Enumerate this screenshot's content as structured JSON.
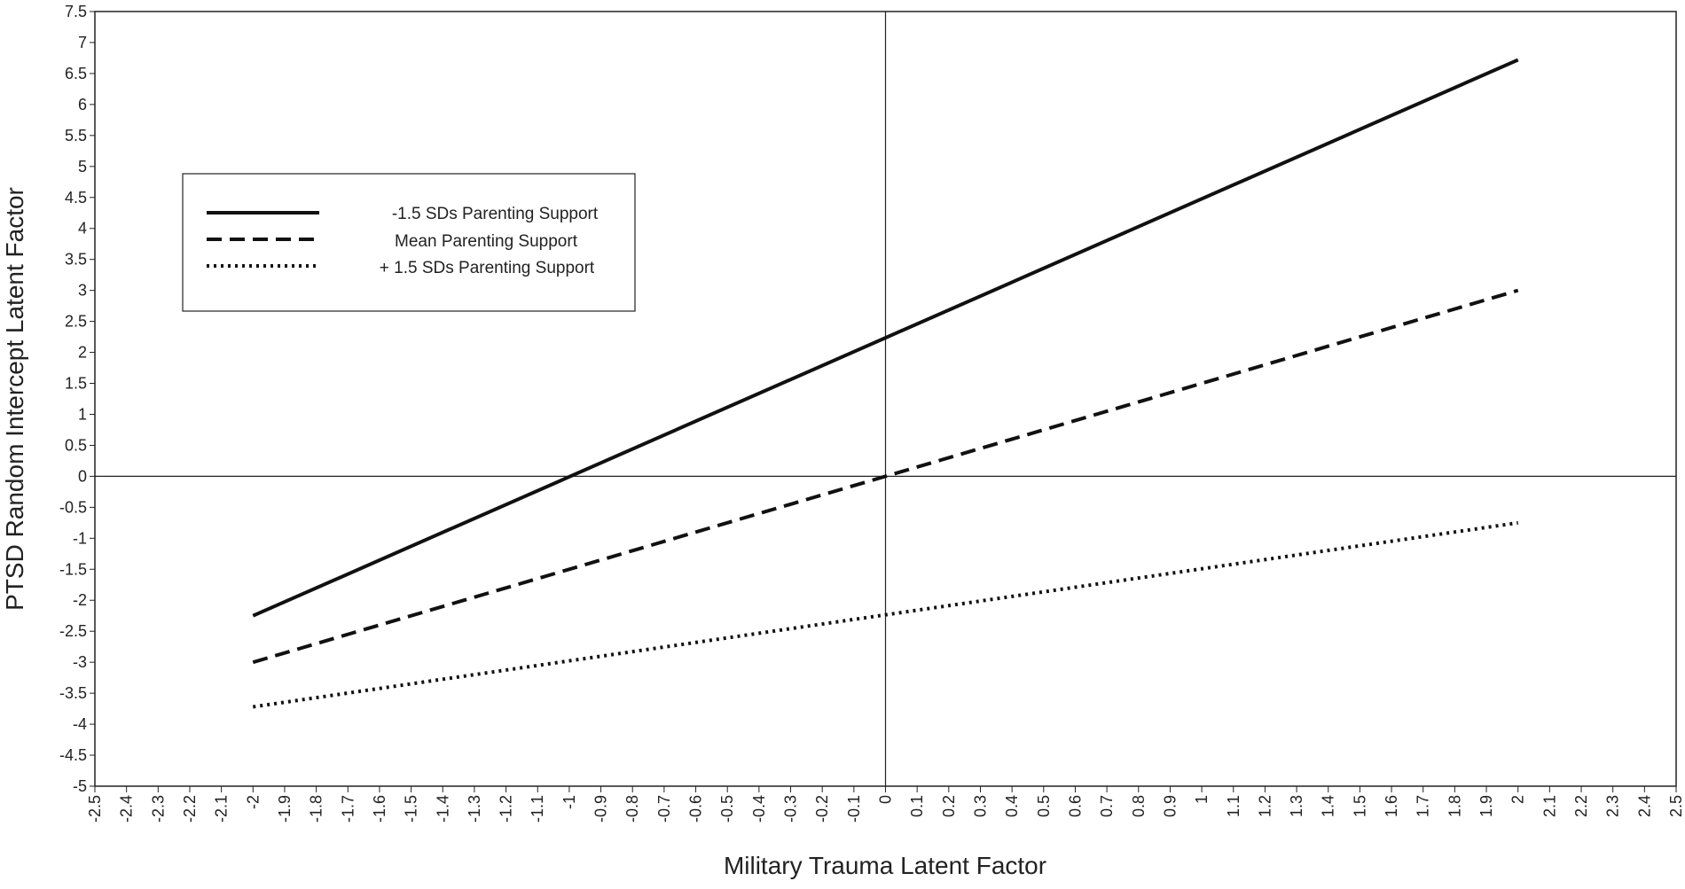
{
  "chart_data": {
    "type": "line",
    "title": "",
    "xlabel": "Military Trauma Latent Factor",
    "ylabel": "PTSD Random Intercept Latent Factor",
    "xlim": [
      -2.5,
      2.5
    ],
    "ylim": [
      -5,
      7.5
    ],
    "x_ticks": [
      "-2.5",
      "-2.4",
      "-2.3",
      "-2.2",
      "-2.1",
      "-2",
      "-1.9",
      "-1.8",
      "-1.7",
      "-1.6",
      "-1.5",
      "-1.4",
      "-1.3",
      "-1.2",
      "-1.1",
      "-1",
      "-0.9",
      "-0.8",
      "-0.7",
      "-0.6",
      "-0.5",
      "-0.4",
      "-0.3",
      "-0.2",
      "-0.1",
      "0",
      "0.1",
      "0.2",
      "0.3",
      "0.4",
      "0.5",
      "0.6",
      "0.7",
      "0.8",
      "0.9",
      "1",
      "1.1",
      "1.2",
      "1.3",
      "1.4",
      "1.5",
      "1.6",
      "1.7",
      "1.8",
      "1.9",
      "2",
      "2.1",
      "2.2",
      "2.3",
      "2.4",
      "2.5"
    ],
    "y_ticks": [
      "-5",
      "-4.5",
      "-4",
      "-3.5",
      "-3",
      "-2.5",
      "-2",
      "-1.5",
      "-1",
      "-0.5",
      "0",
      "0.5",
      "1",
      "1.5",
      "2",
      "2.5",
      "3",
      "3.5",
      "4",
      "4.5",
      "5",
      "5.5",
      "6",
      "6.5",
      "7",
      "7.5"
    ],
    "grid": false,
    "legend_position": "upper-left",
    "series": [
      {
        "name": "-1.5 SDs Parenting Support",
        "style": "solid",
        "x": [
          -2,
          2
        ],
        "y": [
          -2.25,
          6.72
        ]
      },
      {
        "name": "Mean Parenting Support",
        "style": "dashed",
        "x": [
          -2,
          2
        ],
        "y": [
          -3.0,
          3.0
        ]
      },
      {
        "name": "+ 1.5 SDs Parenting Support",
        "style": "dotted",
        "x": [
          -2,
          2
        ],
        "y": [
          -3.72,
          -0.75
        ]
      }
    ]
  }
}
